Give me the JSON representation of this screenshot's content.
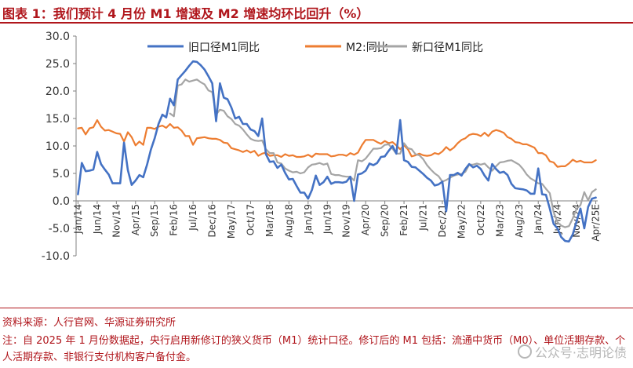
{
  "title": "图表 1：我们预计 4 月份 M1 增速及 M2 增速均环比回升（%）",
  "source": "资料来源：人行官网、华源证券研究所",
  "note": "注：自 2025 年 1 月份数据起，央行启用新修订的狭义货币（M1）统计口径。修订后的 M1 包括：流通中货币（M0）、单位活期存款、个人活期存款、非银行支付机构客户备付金。",
  "watermark": "公众号·志明论债",
  "colors": {
    "accent": "#b0161c",
    "old_m1": "#4472c4",
    "m2": "#ed7d31",
    "new_m1": "#a5a5a5"
  },
  "chart_data": {
    "type": "line",
    "ylim": [
      -10,
      30
    ],
    "yticks": [
      "-10.0",
      "-5.0",
      "0.0",
      "5.0",
      "10.0",
      "15.0",
      "20.0",
      "25.0",
      "30.0"
    ],
    "xticks": [
      "Jan/14",
      "Jun/14",
      "Nov/14",
      "Apr/15",
      "Sep/15",
      "Feb/16",
      "Jul/16",
      "Dec/16",
      "May/17",
      "Oct/17",
      "Mar/18",
      "Aug/18",
      "Jan/19",
      "Jun/19",
      "Nov/19",
      "Apr/20",
      "Sep/20",
      "Feb/21",
      "Jul/21",
      "Dec/21",
      "May/22",
      "Oct/22",
      "Mar/23",
      "Aug/23",
      "Jan/24",
      "Jun/24",
      "Nov/24",
      "Apr/25E"
    ],
    "grid": false,
    "legend": "top",
    "x": [
      "2014-01",
      "2014-02",
      "2014-03",
      "2014-04",
      "2014-05",
      "2014-06",
      "2014-07",
      "2014-08",
      "2014-09",
      "2014-10",
      "2014-11",
      "2014-12",
      "2015-01",
      "2015-02",
      "2015-03",
      "2015-04",
      "2015-05",
      "2015-06",
      "2015-07",
      "2015-08",
      "2015-09",
      "2015-10",
      "2015-11",
      "2015-12",
      "2016-01",
      "2016-02",
      "2016-03",
      "2016-04",
      "2016-05",
      "2016-06",
      "2016-07",
      "2016-08",
      "2016-09",
      "2016-10",
      "2016-11",
      "2016-12",
      "2017-01",
      "2017-02",
      "2017-03",
      "2017-04",
      "2017-05",
      "2017-06",
      "2017-07",
      "2017-08",
      "2017-09",
      "2017-10",
      "2017-11",
      "2017-12",
      "2018-01",
      "2018-02",
      "2018-03",
      "2018-04",
      "2018-05",
      "2018-06",
      "2018-07",
      "2018-08",
      "2018-09",
      "2018-10",
      "2018-11",
      "2018-12",
      "2019-01",
      "2019-02",
      "2019-03",
      "2019-04",
      "2019-05",
      "2019-06",
      "2019-07",
      "2019-08",
      "2019-09",
      "2019-10",
      "2019-11",
      "2019-12",
      "2020-01",
      "2020-02",
      "2020-03",
      "2020-04",
      "2020-05",
      "2020-06",
      "2020-07",
      "2020-08",
      "2020-09",
      "2020-10",
      "2020-11",
      "2020-12",
      "2021-01",
      "2021-02",
      "2021-03",
      "2021-04",
      "2021-05",
      "2021-06",
      "2021-07",
      "2021-08",
      "2021-09",
      "2021-10",
      "2021-11",
      "2021-12",
      "2022-01",
      "2022-02",
      "2022-03",
      "2022-04",
      "2022-05",
      "2022-06",
      "2022-07",
      "2022-08",
      "2022-09",
      "2022-10",
      "2022-11",
      "2022-12",
      "2023-01",
      "2023-02",
      "2023-03",
      "2023-04",
      "2023-05",
      "2023-06",
      "2023-07",
      "2023-08",
      "2023-09",
      "2023-10",
      "2023-11",
      "2023-12",
      "2024-01",
      "2024-02",
      "2024-03",
      "2024-04",
      "2024-05",
      "2024-06",
      "2024-07",
      "2024-08",
      "2024-09",
      "2024-10",
      "2024-11",
      "2024-12",
      "2025-01",
      "2025-02",
      "2025-03",
      "2025-04E"
    ],
    "series": [
      {
        "name": "旧口径M1同比",
        "values": [
          1.2,
          6.9,
          5.4,
          5.5,
          5.7,
          8.9,
          6.7,
          5.7,
          4.8,
          3.2,
          3.2,
          3.2,
          10.6,
          5.6,
          2.9,
          3.7,
          4.7,
          4.3,
          6.6,
          9.3,
          11.4,
          14.0,
          15.7,
          15.2,
          18.6,
          17.4,
          22.1,
          22.9,
          23.7,
          24.6,
          25.4,
          25.3,
          24.7,
          23.9,
          22.7,
          21.4,
          14.5,
          21.4,
          18.8,
          18.5,
          17.0,
          15.0,
          15.3,
          14.0,
          14.0,
          13.0,
          12.7,
          11.8,
          15.0,
          8.5,
          7.1,
          7.2,
          6.0,
          6.6,
          5.1,
          3.9,
          4.0,
          2.7,
          1.5,
          1.5,
          0.4,
          2.0,
          4.6,
          2.9,
          3.4,
          4.4,
          3.1,
          3.4,
          3.4,
          3.3,
          3.5,
          4.4,
          0.0,
          4.8,
          5.0,
          5.5,
          6.8,
          6.5,
          6.9,
          8.0,
          8.1,
          9.1,
          10.0,
          8.6,
          14.7,
          7.4,
          7.1,
          6.2,
          6.1,
          5.5,
          4.9,
          4.2,
          3.7,
          2.8,
          3.0,
          3.5,
          -1.9,
          4.7,
          4.7,
          5.1,
          4.6,
          5.8,
          6.7,
          6.1,
          6.4,
          5.8,
          4.6,
          3.7,
          6.7,
          5.8,
          5.1,
          5.3,
          4.7,
          3.1,
          2.3,
          2.2,
          2.1,
          1.9,
          1.3,
          1.3,
          5.9,
          1.2,
          1.1,
          -1.4,
          -4.2,
          -5.0,
          -6.6,
          -7.3,
          -7.4,
          -6.1,
          -3.7,
          -1.4,
          -5.0,
          -1.1,
          0.4,
          0.6
        ]
      },
      {
        "name": "M2:同比",
        "values": [
          13.2,
          13.3,
          12.1,
          13.2,
          13.4,
          14.7,
          13.5,
          12.8,
          12.9,
          12.6,
          12.3,
          12.2,
          10.8,
          12.5,
          11.6,
          10.1,
          10.8,
          10.2,
          13.3,
          13.3,
          13.1,
          13.5,
          13.7,
          13.3,
          14.0,
          13.3,
          13.4,
          12.8,
          11.8,
          11.8,
          10.2,
          11.4,
          11.5,
          11.6,
          11.4,
          11.3,
          11.3,
          11.1,
          10.6,
          10.5,
          9.6,
          9.4,
          9.2,
          8.9,
          9.2,
          8.8,
          9.1,
          8.2,
          8.6,
          8.8,
          8.2,
          8.3,
          8.3,
          8.0,
          8.5,
          8.2,
          8.3,
          8.0,
          8.0,
          8.1,
          8.4,
          8.0,
          8.6,
          8.5,
          8.5,
          8.5,
          8.1,
          8.2,
          8.4,
          8.4,
          8.2,
          8.7,
          8.4,
          8.8,
          10.1,
          11.1,
          11.1,
          11.1,
          10.7,
          10.4,
          10.9,
          10.5,
          10.7,
          10.1,
          9.4,
          10.1,
          9.4,
          8.1,
          8.3,
          8.6,
          8.3,
          8.2,
          8.3,
          8.7,
          8.5,
          9.0,
          9.8,
          9.2,
          9.7,
          10.5,
          11.1,
          11.4,
          12.0,
          12.2,
          12.1,
          11.8,
          12.4,
          11.8,
          12.6,
          12.9,
          12.7,
          12.4,
          11.6,
          11.3,
          10.7,
          10.6,
          10.3,
          10.3,
          10.0,
          9.7,
          8.7,
          8.7,
          8.3,
          7.2,
          7.0,
          6.2,
          6.3,
          6.3,
          6.8,
          7.5,
          7.1,
          7.3,
          7.0,
          7.0,
          7.0,
          7.4
        ]
      },
      {
        "name": "新口径M1同比",
        "values": [
          null,
          null,
          null,
          null,
          null,
          null,
          null,
          null,
          null,
          null,
          null,
          null,
          null,
          null,
          null,
          null,
          null,
          null,
          null,
          null,
          null,
          null,
          null,
          null,
          15.9,
          15.4,
          21.0,
          21.2,
          22.1,
          21.7,
          21.9,
          22.1,
          21.6,
          21.2,
          20.1,
          19.8,
          15.7,
          16.6,
          16.4,
          15.4,
          14.9,
          14.0,
          13.7,
          13.0,
          12.1,
          11.3,
          11.0,
          10.9,
          11.0,
          9.4,
          8.7,
          8.7,
          7.0,
          6.8,
          5.9,
          5.5,
          5.2,
          5.3,
          5.0,
          5.2,
          6.1,
          6.6,
          6.7,
          6.9,
          6.6,
          6.8,
          4.9,
          4.7,
          4.7,
          4.5,
          4.4,
          4.4,
          3.7,
          7.4,
          7.2,
          7.7,
          8.6,
          9.5,
          9.5,
          9.6,
          10.2,
          10.3,
          9.5,
          8.6,
          8.6,
          10.5,
          9.6,
          9.4,
          8.5,
          8.3,
          7.6,
          6.5,
          5.7,
          5.0,
          4.5,
          3.5,
          3.8,
          4.2,
          4.6,
          4.8,
          4.9,
          5.3,
          6.6,
          6.6,
          6.8,
          6.6,
          6.8,
          6.1,
          5.5,
          6.3,
          7.0,
          7.1,
          7.3,
          7.4,
          7.0,
          6.6,
          5.8,
          4.8,
          4.1,
          3.7,
          3.2,
          3.1,
          2.2,
          1.4,
          -2.0,
          -3.9,
          -4.5,
          -4.8,
          -4.6,
          -3.2,
          -1.4,
          -0.8,
          1.6,
          0.1,
          1.6,
          2.1
        ]
      }
    ]
  }
}
